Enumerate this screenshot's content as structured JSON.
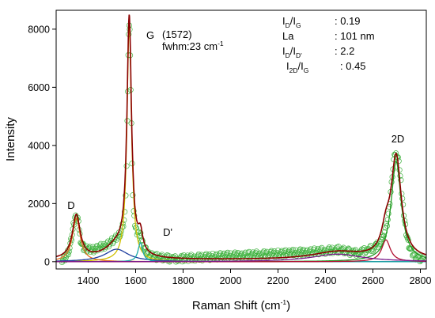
{
  "chart_data": {
    "type": "line",
    "xlabel": "Raman Shift (cm",
    "xlabel_sup": "-1",
    "xlabel_end": ")",
    "ylabel": "Intensity",
    "xlim": [
      1265,
      2825
    ],
    "ylim": [
      -250,
      8650
    ],
    "x_ticks": [
      1400,
      1600,
      1800,
      2000,
      2200,
      2400,
      2600,
      2800
    ],
    "y_ticks": [
      0,
      2000,
      4000,
      6000,
      8000
    ],
    "grid": false,
    "peak_labels": [
      {
        "text": "D",
        "x": 1350,
        "y": 1560
      },
      {
        "text": "G",
        "x": 1573,
        "y": 8220
      },
      {
        "text": "D'",
        "x": 1620,
        "y": 640
      },
      {
        "text": "2D",
        "x": 2695,
        "y": 3800
      }
    ],
    "annotation": {
      "position_line": "(1572)",
      "fwhm_prefix": "fwhm:23 cm",
      "fwhm_sup": "-1"
    },
    "ratios": [
      {
        "base": "I",
        "sub1": "D",
        "mid": "/I",
        "sub2": "G",
        "value": ": 0.19"
      },
      {
        "base": "La",
        "sub1": "",
        "mid": "",
        "sub2": "",
        "value": ": 101 nm"
      },
      {
        "base": "I",
        "sub1": "D",
        "mid": "/I",
        "sub2": "D'",
        "value": ":  2.2"
      },
      {
        "base": "I",
        "sub1": "2D",
        "mid": "/I",
        "sub2": "G",
        "value": ": 0.45"
      }
    ],
    "components": [
      {
        "color": "#d0c000",
        "peaks": [
          {
            "c": 1573,
            "a": 8150,
            "w": 11.5
          }
        ]
      },
      {
        "color": "#e07020",
        "peaks": [
          {
            "c": 1350,
            "a": 1500,
            "w": 20
          }
        ]
      },
      {
        "color": "#1f3f9f",
        "peaks": [
          {
            "c": 1520,
            "a": 430,
            "w": 60
          }
        ]
      },
      {
        "color": "#1aa8a8",
        "peaks": [
          {
            "c": 1620,
            "a": 650,
            "w": 12
          }
        ]
      },
      {
        "color": "#229922",
        "peaks": [
          {
            "c": 2698,
            "a": 3450,
            "w": 26
          }
        ]
      },
      {
        "color": "#b01030",
        "peaks": [
          {
            "c": 2655,
            "a": 750,
            "w": 22
          }
        ]
      },
      {
        "color": "#7a1a8a",
        "peaks": [
          {
            "c": 2450,
            "a": 260,
            "w": 130
          }
        ]
      }
    ],
    "fit_color": "#8b0000",
    "data_color": "#3fb23f",
    "data_points": [
      [
        1290,
        90
      ],
      [
        1298,
        120
      ],
      [
        1306,
        180
      ],
      [
        1314,
        280
      ],
      [
        1322,
        450
      ],
      [
        1330,
        800
      ],
      [
        1338,
        1250
      ],
      [
        1344,
        1520
      ],
      [
        1350,
        1580
      ],
      [
        1356,
        1450
      ],
      [
        1362,
        1120
      ],
      [
        1368,
        760
      ],
      [
        1376,
        560
      ],
      [
        1384,
        470
      ],
      [
        1392,
        430
      ],
      [
        1400,
        420
      ],
      [
        1410,
        400
      ],
      [
        1420,
        420
      ],
      [
        1430,
        450
      ],
      [
        1440,
        470
      ],
      [
        1450,
        500
      ],
      [
        1460,
        520
      ],
      [
        1470,
        560
      ],
      [
        1480,
        600
      ],
      [
        1490,
        640
      ],
      [
        1500,
        700
      ],
      [
        1510,
        750
      ],
      [
        1520,
        820
      ],
      [
        1530,
        920
      ],
      [
        1540,
        1060
      ],
      [
        1548,
        1300
      ],
      [
        1554,
        1650
      ],
      [
        1558,
        2300
      ],
      [
        1562,
        3400
      ],
      [
        1565,
        4800
      ],
      [
        1567,
        5900
      ],
      [
        1569,
        7000
      ],
      [
        1571,
        7800
      ],
      [
        1573,
        8200
      ],
      [
        1575,
        7900
      ],
      [
        1577,
        7100
      ],
      [
        1579,
        6000
      ],
      [
        1582,
        4700
      ],
      [
        1585,
        3400
      ],
      [
        1588,
        2400
      ],
      [
        1592,
        1700
      ],
      [
        1597,
        1280
      ],
      [
        1603,
        1050
      ],
      [
        1609,
        980
      ],
      [
        1615,
        950
      ],
      [
        1621,
        900
      ],
      [
        1627,
        750
      ],
      [
        1633,
        560
      ],
      [
        1640,
        420
      ],
      [
        1648,
        320
      ],
      [
        1656,
        260
      ],
      [
        1665,
        220
      ],
      [
        1675,
        190
      ],
      [
        1690,
        160
      ],
      [
        1705,
        140
      ],
      [
        1720,
        120
      ],
      [
        1740,
        110
      ],
      [
        1760,
        100
      ],
      [
        1780,
        110
      ],
      [
        1800,
        115
      ],
      [
        1825,
        130
      ],
      [
        1850,
        140
      ],
      [
        1875,
        150
      ],
      [
        1900,
        160
      ],
      [
        1925,
        170
      ],
      [
        1950,
        185
      ],
      [
        1975,
        200
      ],
      [
        2000,
        205
      ],
      [
        2025,
        215
      ],
      [
        2050,
        225
      ],
      [
        2075,
        230
      ],
      [
        2100,
        240
      ],
      [
        2125,
        250
      ],
      [
        2150,
        255
      ],
      [
        2175,
        265
      ],
      [
        2200,
        280
      ],
      [
        2225,
        290
      ],
      [
        2250,
        300
      ],
      [
        2275,
        310
      ],
      [
        2300,
        320
      ],
      [
        2325,
        340
      ],
      [
        2350,
        350
      ],
      [
        2375,
        360
      ],
      [
        2400,
        375
      ],
      [
        2425,
        390
      ],
      [
        2440,
        420
      ],
      [
        2455,
        410
      ],
      [
        2470,
        380
      ],
      [
        2485,
        360
      ],
      [
        2500,
        340
      ],
      [
        2520,
        320
      ],
      [
        2540,
        320
      ],
      [
        2560,
        350
      ],
      [
        2580,
        400
      ],
      [
        2600,
        480
      ],
      [
        2615,
        560
      ],
      [
        2628,
        650
      ],
      [
        2640,
        800
      ],
      [
        2650,
        1000
      ],
      [
        2660,
        1300
      ],
      [
        2668,
        1800
      ],
      [
        2675,
        2400
      ],
      [
        2682,
        3000
      ],
      [
        2688,
        3450
      ],
      [
        2694,
        3700
      ],
      [
        2700,
        3720
      ],
      [
        2706,
        3550
      ],
      [
        2712,
        3200
      ],
      [
        2718,
        2700
      ],
      [
        2724,
        2150
      ],
      [
        2730,
        1650
      ],
      [
        2737,
        1200
      ],
      [
        2744,
        850
      ],
      [
        2752,
        560
      ],
      [
        2760,
        380
      ],
      [
        2770,
        260
      ],
      [
        2780,
        180
      ],
      [
        2792,
        130
      ],
      [
        2805,
        100
      ],
      [
        2818,
        90
      ]
    ]
  }
}
